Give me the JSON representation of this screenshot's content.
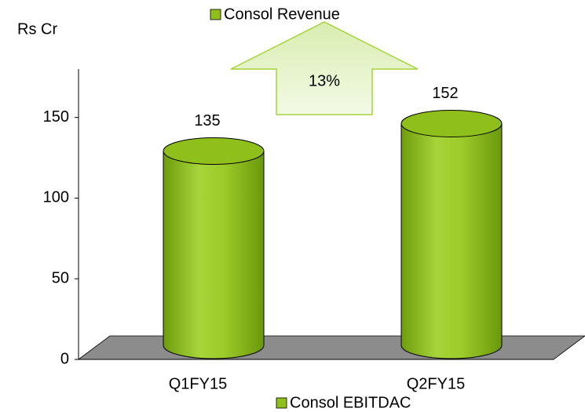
{
  "chart_data": {
    "type": "bar",
    "title": "Consol Revenue",
    "y_axis_label": "Rs Cr",
    "categories": [
      "Q1FY15",
      "Q2FY15"
    ],
    "series": [
      {
        "name": "Consol Revenue",
        "color": "#8fbf1a",
        "values": [
          135,
          152
        ]
      }
    ],
    "footer_legend": "Consol EBITDAC",
    "annotation": "13%",
    "ylim": [
      0,
      180
    ],
    "yticks": [
      0,
      50,
      100,
      150
    ],
    "grid": false
  }
}
